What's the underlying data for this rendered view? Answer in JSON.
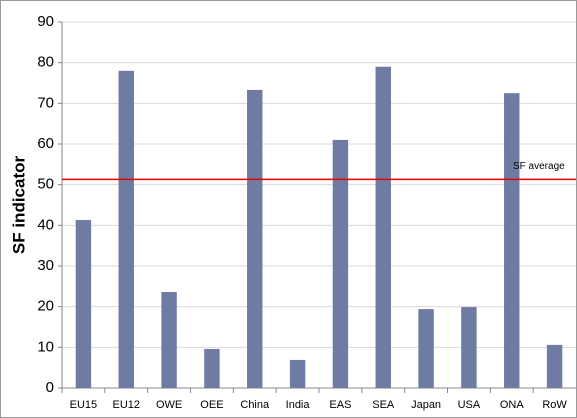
{
  "chart_data": {
    "type": "bar",
    "y_label": "SF indicator",
    "categories": [
      "EU15",
      "EU12",
      "OWE",
      "OEE",
      "China",
      "India",
      "EAS",
      "SEA",
      "Japan",
      "USA",
      "ONA",
      "RoW"
    ],
    "values": [
      41.3,
      78,
      23.6,
      9.6,
      73.3,
      6.9,
      61,
      79,
      19.4,
      19.9,
      72.5,
      10.6
    ],
    "color": "#6e7ba3",
    "ylim": [
      0,
      90
    ],
    "yticks": [
      0,
      10,
      20,
      30,
      40,
      50,
      60,
      70,
      80,
      90
    ],
    "grid": true,
    "reference_line": {
      "value": 51.3,
      "label": "SF average",
      "color": "#e00000"
    }
  }
}
